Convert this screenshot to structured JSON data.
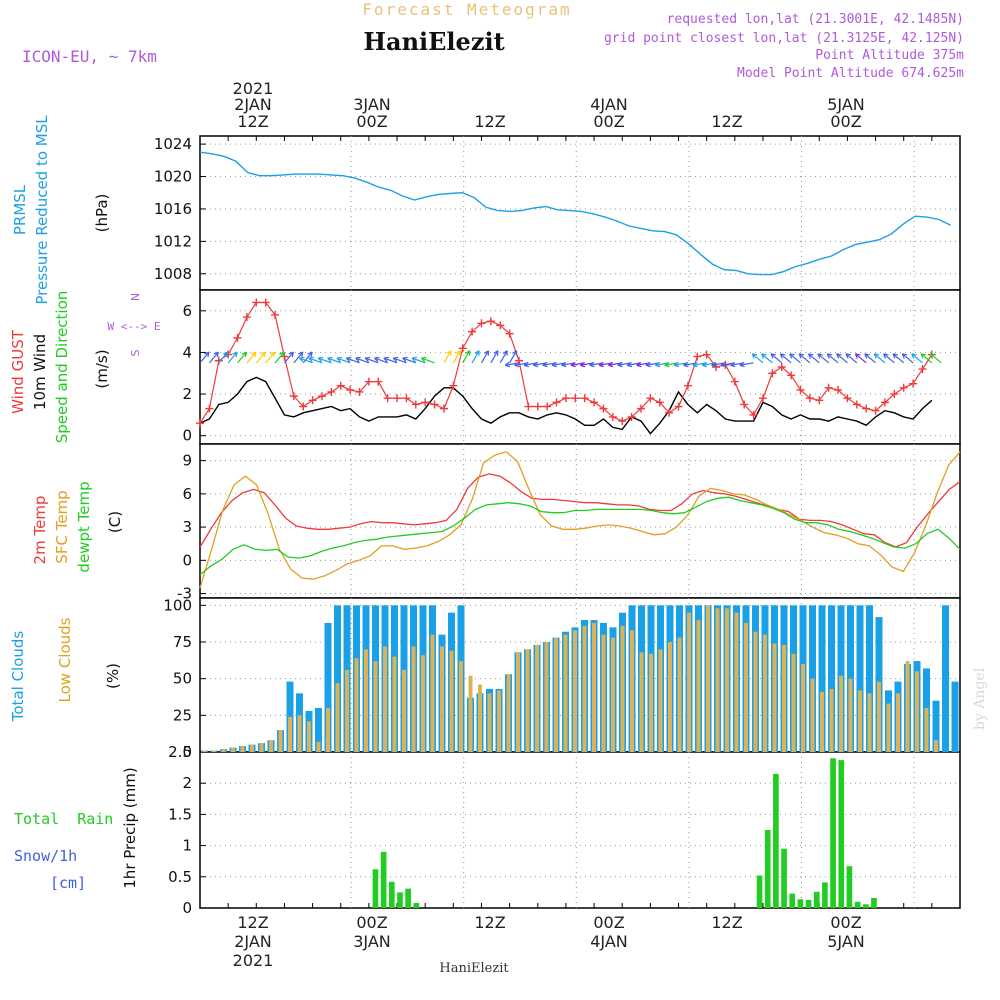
{
  "header": {
    "forecast_title": "Forecast Meteogram",
    "station": "HaniElezit",
    "model": "ICON-EU, ~ 7km",
    "requested": "requested lon,lat (21.3001E, 42.1485N)",
    "closest": "grid point closest lon,lat (21.3125E, 42.125N)",
    "point_alt": "Point Altitude 375m",
    "model_alt": "Model Point Altitude 674.625m"
  },
  "footer": {
    "station": "HaniElezit",
    "watermark": "by Angel"
  },
  "time_axis": {
    "top_year": "2021",
    "top_days": [
      "2JAN",
      "3JAN",
      "4JAN",
      "5JAN"
    ],
    "top_hours": [
      "12Z",
      "00Z",
      "12Z",
      "00Z",
      "12Z",
      "00Z"
    ],
    "bottom_hours": [
      "12Z",
      "00Z",
      "12Z",
      "00Z",
      "12Z",
      "00Z"
    ],
    "bottom_days": [
      "2JAN",
      "3JAN",
      "4JAN",
      "5JAN"
    ],
    "bottom_year": "2021"
  },
  "colors": {
    "pressure": "#1aa0e6",
    "gust": "#ee3b3b",
    "wind": "#000000",
    "t2m": "#ee3b3b",
    "sfc": "#e0a020",
    "dewpt": "#22cc22",
    "total_clouds": "#1aa0e6",
    "low_clouds": "#d9b25a",
    "rain": "#22cc22"
  },
  "chart_data": [
    {
      "type": "line",
      "panel": "pressure",
      "ylabel_lines": [
        "PRMSL",
        "Pressure Reduced to MSL"
      ],
      "unit": "(hPa)",
      "ylim": [
        1006,
        1025
      ],
      "yticks": [
        "1024",
        "1020",
        "1016",
        "1012",
        "1008"
      ],
      "x_hours": [
        0,
        1,
        2,
        3,
        4,
        5,
        6,
        7,
        8,
        9,
        10,
        11,
        12,
        13,
        14,
        15,
        16,
        17,
        18,
        19,
        20,
        21,
        22,
        23,
        24,
        25,
        26,
        27,
        28,
        29,
        30,
        31,
        32,
        33,
        34,
        35,
        36,
        37,
        38,
        39,
        40,
        41,
        42,
        43,
        44,
        45,
        46,
        47,
        48,
        49,
        50,
        51,
        52,
        53,
        54,
        55,
        56,
        57,
        58,
        59,
        60,
        61,
        62,
        63,
        64,
        65,
        66,
        67,
        68,
        69,
        70,
        71,
        72,
        73,
        74,
        75,
        76,
        77,
        78
      ],
      "series": [
        {
          "values": [
            1023.0,
            1022.8,
            1022.5,
            1021.9,
            1020.5,
            1020.1,
            1020.1,
            1020.2,
            1020.3,
            1020.3,
            1020.3,
            1020.2,
            1020.1,
            1019.8,
            1019.3,
            1018.7,
            1018.3,
            1017.6,
            1017.1,
            1017.5,
            1017.8,
            1017.9,
            1018.0,
            1017.4,
            1016.2,
            1015.8,
            1015.7,
            1015.8,
            1016.1,
            1016.3,
            1015.9,
            1015.8,
            1015.7,
            1015.4,
            1015.0,
            1014.5,
            1013.9,
            1013.6,
            1013.3,
            1013.2,
            1012.8,
            1011.7,
            1010.4,
            1009.2,
            1008.5,
            1008.4,
            1008.0,
            1007.9,
            1007.9,
            1008.3,
            1008.9,
            1009.3,
            1009.8,
            1010.2,
            1011.0,
            1011.6,
            1011.9,
            1012.2,
            1012.9,
            1014.1,
            1015.1,
            1015.0,
            1014.7,
            1014.0
          ]
        }
      ]
    },
    {
      "type": "line",
      "panel": "wind",
      "ylabel_lines": [
        "Wind GUST",
        "10m Wind",
        "Speed and Direction"
      ],
      "unit": "(m/s)",
      "compass": [
        "N",
        "W <--> E",
        "S"
      ],
      "ylim": [
        -0.4,
        7
      ],
      "yticks": [
        "6",
        "4",
        "2",
        "0"
      ],
      "series": [
        {
          "name": "Wind GUST",
          "values": [
            0.6,
            1.3,
            3.6,
            3.9,
            4.7,
            5.7,
            6.4,
            6.4,
            5.8,
            3.8,
            1.9,
            1.4,
            1.7,
            1.9,
            2.1,
            2.4,
            2.2,
            2.1,
            2.6,
            2.6,
            1.8,
            1.8,
            1.8,
            1.5,
            1.6,
            1.5,
            1.3,
            2.4,
            4.2,
            5.0,
            5.4,
            5.5,
            5.3,
            4.9,
            3.6,
            1.4,
            1.4,
            1.4,
            1.6,
            1.8,
            1.8,
            1.8,
            1.6,
            1.3,
            0.9,
            0.7,
            0.9,
            1.3,
            1.8,
            1.6,
            1.1,
            1.4,
            2.4,
            3.8,
            3.9,
            3.3,
            3.4,
            2.6,
            1.5,
            1.0,
            1.8,
            3.0,
            3.3,
            2.9,
            2.2,
            1.8,
            1.7,
            2.3,
            2.2,
            1.8,
            1.5,
            1.3,
            1.2,
            1.6,
            2.0,
            2.3,
            2.5,
            3.2,
            3.9
          ]
        },
        {
          "name": "10m Wind",
          "values": [
            0.6,
            0.8,
            1.5,
            1.6,
            2.0,
            2.6,
            2.8,
            2.6,
            1.8,
            1.0,
            0.9,
            1.1,
            1.2,
            1.3,
            1.4,
            1.2,
            1.3,
            0.9,
            0.7,
            0.9,
            0.9,
            0.9,
            1.0,
            0.8,
            1.3,
            1.9,
            2.3,
            2.3,
            1.9,
            1.3,
            0.8,
            0.6,
            0.9,
            1.1,
            1.1,
            0.9,
            0.8,
            1.0,
            1.1,
            1.0,
            0.8,
            0.5,
            0.5,
            0.8,
            0.4,
            0.3,
            0.9,
            0.7,
            0.1,
            0.6,
            1.2,
            2.1,
            1.5,
            1.1,
            1.5,
            1.2,
            0.8,
            0.7,
            0.7,
            0.7,
            1.6,
            1.4,
            1.0,
            0.8,
            1.0,
            0.8,
            0.8,
            0.7,
            0.9,
            0.8,
            0.7,
            0.5,
            0.9,
            1.2,
            1.1,
            0.9,
            0.8,
            1.3,
            1.7
          ]
        }
      ]
    },
    {
      "type": "line",
      "panel": "temperature",
      "ylabel_lines": [
        "2m Temp",
        "SFC Temp",
        "dewpt Temp"
      ],
      "unit": "(C)",
      "ylim": [
        -3.4,
        10.5
      ],
      "yticks": [
        "9",
        "6",
        "3",
        "0",
        "-3"
      ],
      "series": [
        {
          "name": "2m Temp",
          "values": [
            1.2,
            2.8,
            4.3,
            5.4,
            6.1,
            6.4,
            6.1,
            5.0,
            3.8,
            3.1,
            2.9,
            2.8,
            2.8,
            2.9,
            3.0,
            3.3,
            3.5,
            3.4,
            3.4,
            3.3,
            3.2,
            3.3,
            3.4,
            3.6,
            4.6,
            6.5,
            7.5,
            7.8,
            7.6,
            7.0,
            6.2,
            5.6,
            5.5,
            5.5,
            5.4,
            5.3,
            5.2,
            5.2,
            5.1,
            5.0,
            5.0,
            4.9,
            4.6,
            4.5,
            4.5,
            5.1,
            6.0,
            6.3,
            6.1,
            6.0,
            5.8,
            5.5,
            5.2,
            4.9,
            4.6,
            4.4,
            3.7,
            3.6,
            3.6,
            3.5,
            3.2,
            2.8,
            2.4,
            2.3,
            1.6,
            1.2,
            1.6,
            3.0,
            4.2,
            5.3,
            6.4,
            7.1
          ]
        },
        {
          "name": "SFC Temp",
          "values": [
            -2.5,
            0.9,
            4.5,
            6.8,
            7.6,
            6.8,
            4.2,
            1.0,
            -0.8,
            -1.6,
            -1.7,
            -1.4,
            -0.9,
            -0.3,
            0.0,
            0.4,
            1.3,
            1.3,
            1.0,
            1.1,
            1.3,
            1.7,
            2.3,
            3.2,
            5.5,
            8.8,
            9.5,
            9.8,
            8.9,
            6.4,
            4.1,
            3.1,
            2.8,
            2.8,
            2.9,
            3.1,
            3.2,
            3.1,
            2.9,
            2.6,
            2.3,
            2.4,
            3.0,
            4.1,
            5.8,
            6.5,
            6.3,
            6.0,
            5.9,
            5.5,
            5.0,
            4.6,
            4.1,
            3.6,
            3.0,
            2.5,
            2.3,
            2.0,
            1.5,
            1.3,
            0.5,
            -0.6,
            -1.0,
            0.7,
            3.2,
            6.1,
            8.6,
            9.8
          ]
        },
        {
          "name": "dewpt Temp",
          "values": [
            -1.3,
            -0.5,
            0.1,
            1.0,
            1.4,
            1.0,
            0.9,
            1.0,
            0.3,
            0.2,
            0.4,
            0.8,
            1.1,
            1.3,
            1.6,
            1.8,
            1.9,
            2.1,
            2.2,
            2.3,
            2.4,
            2.5,
            2.6,
            3.1,
            3.8,
            4.6,
            5.0,
            5.1,
            5.2,
            5.1,
            4.9,
            4.4,
            4.3,
            4.3,
            4.5,
            4.5,
            4.6,
            4.6,
            4.6,
            4.6,
            4.6,
            4.5,
            4.3,
            4.2,
            4.3,
            4.8,
            5.3,
            5.6,
            5.7,
            5.4,
            5.2,
            5.0,
            4.7,
            4.3,
            3.7,
            3.4,
            3.4,
            3.2,
            2.8,
            2.6,
            2.3,
            2.0,
            1.6,
            1.2,
            1.1,
            1.5,
            2.4,
            2.8,
            2.0,
            1.0
          ]
        }
      ]
    },
    {
      "type": "bar",
      "panel": "clouds",
      "ylabel_lines": [
        "Total Clouds",
        "Low Clouds"
      ],
      "unit": "(%)",
      "ylim": [
        0,
        105
      ],
      "yticks": [
        "100",
        "75",
        "50",
        "25",
        "0"
      ],
      "series": [
        {
          "name": "Total Clouds",
          "values": [
            1,
            1,
            2,
            3,
            4,
            5,
            6,
            8,
            15,
            48,
            40,
            28,
            30,
            88,
            100,
            100,
            100,
            100,
            100,
            100,
            100,
            100,
            100,
            100,
            100,
            80,
            95,
            100,
            37,
            40,
            43,
            43,
            53,
            68,
            70,
            73,
            75,
            78,
            82,
            85,
            90,
            90,
            88,
            85,
            95,
            100,
            100,
            100,
            100,
            100,
            100,
            100,
            100,
            100,
            100,
            100,
            100,
            100,
            100,
            100,
            100,
            100,
            100,
            100,
            100,
            100,
            100,
            100,
            100,
            100,
            100,
            92,
            42,
            48,
            60,
            62,
            57,
            35,
            100,
            48
          ]
        },
        {
          "name": "Low Clouds",
          "values": [
            1,
            1,
            2,
            3,
            4,
            5,
            6,
            8,
            15,
            24,
            25,
            21,
            7,
            30,
            47,
            56,
            64,
            70,
            62,
            72,
            65,
            56,
            72,
            66,
            80,
            72,
            69,
            62,
            52,
            46,
            40,
            42,
            53,
            68,
            70,
            73,
            75,
            78,
            80,
            83,
            86,
            88,
            80,
            78,
            86,
            83,
            68,
            67,
            70,
            75,
            78,
            95,
            90,
            100,
            98,
            98,
            95,
            88,
            82,
            80,
            74,
            73,
            67,
            60,
            50,
            41,
            43,
            52,
            50,
            42,
            40,
            48,
            33,
            40,
            62,
            55,
            30,
            8,
            0,
            0
          ]
        }
      ]
    },
    {
      "type": "bar",
      "panel": "precip",
      "ylabel": "1hr Precip (mm)",
      "legend_lines": [
        "Total  Rain",
        "Snow/1h",
        "[cm]"
      ],
      "ylim": [
        0,
        2.5
      ],
      "yticks": [
        "2.5",
        "2",
        "1.5",
        "1",
        "0.5",
        "0"
      ],
      "series": [
        {
          "name": "Total Rain",
          "values": [
            0,
            0,
            0,
            0,
            0,
            0,
            0,
            0,
            0,
            0,
            0,
            0,
            0,
            0,
            0,
            0,
            0,
            0,
            0,
            0,
            0,
            0.62,
            0.9,
            0.42,
            0.25,
            0.31,
            0.08,
            0,
            0,
            0,
            0,
            0,
            0,
            0,
            0,
            0,
            0,
            0,
            0,
            0,
            0,
            0,
            0,
            0,
            0,
            0,
            0,
            0,
            0,
            0,
            0,
            0,
            0,
            0,
            0,
            0,
            0,
            0,
            0,
            0,
            0,
            0,
            0,
            0,
            0,
            0,
            0,
            0,
            0.52,
            1.25,
            2.15,
            0.95,
            0.23,
            0.14,
            0.13,
            0.26,
            0.41,
            2.4,
            2.37,
            0.67,
            0.1,
            0.06,
            0.16,
            0,
            0,
            0,
            0,
            0,
            0,
            0,
            0,
            0,
            0
          ]
        }
      ]
    }
  ]
}
